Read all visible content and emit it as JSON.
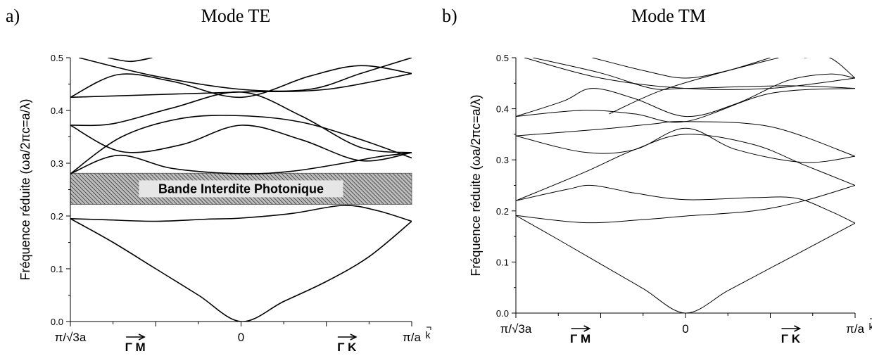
{
  "panels": [
    {
      "letter": "a)",
      "title": "Mode TE"
    },
    {
      "letter": "b)",
      "title": "Mode TM"
    }
  ],
  "chart_data": [
    {
      "type": "line",
      "title": "Mode TE",
      "ylabel": "Fréquence réduite (ωa/2πc=a/λ)",
      "xlabel": "k",
      "ylim": [
        0.0,
        0.5
      ],
      "yticks": [
        "0.0",
        "0.1",
        "0.2",
        "0.3",
        "0.4",
        "0.5"
      ],
      "xlim": [
        -1,
        1
      ],
      "xtick_labels": [
        {
          "x": -1,
          "text": "π/√3a"
        },
        {
          "x": 0,
          "text": "0"
        },
        {
          "x": 1,
          "text": "π/a"
        }
      ],
      "direction_labels": [
        {
          "x": -0.62,
          "text": "Γ M"
        },
        {
          "x": 0.62,
          "text": "Γ K"
        }
      ],
      "band_gap": {
        "label": "Bande Interdite Photonique",
        "ymin": 0.222,
        "ymax": 0.281
      },
      "series": [
        {
          "x": [
            -1,
            -0.8,
            -0.5,
            -0.2,
            0,
            0.3,
            0.6,
            0.8,
            1
          ],
          "y": [
            0.195,
            0.193,
            0.19,
            0.194,
            0.196,
            0.205,
            0.22,
            0.21,
            0.19
          ]
        },
        {
          "x": [
            -1,
            -0.75,
            -0.5,
            -0.25,
            0,
            0.25,
            0.5,
            0.75,
            1
          ],
          "y": [
            0.195,
            0.15,
            0.1,
            0.05,
            0.0,
            0.038,
            0.076,
            0.123,
            0.19
          ]
        },
        {
          "x": [
            -1,
            -0.72,
            -0.4,
            0,
            0.3,
            0.6,
            0.8,
            1
          ],
          "y": [
            0.28,
            0.315,
            0.29,
            0.28,
            0.285,
            0.3,
            0.312,
            0.32
          ]
        },
        {
          "x": [
            -1,
            -0.7,
            -0.35,
            0,
            0.35,
            0.7,
            1
          ],
          "y": [
            0.28,
            0.35,
            0.385,
            0.39,
            0.378,
            0.345,
            0.31
          ]
        },
        {
          "x": [
            -1,
            -0.7,
            -0.35,
            0,
            0.35,
            0.7,
            1
          ],
          "y": [
            0.372,
            0.322,
            0.335,
            0.372,
            0.345,
            0.305,
            0.32
          ]
        },
        {
          "x": [
            -1,
            -0.75,
            -0.4,
            0,
            0.35,
            0.7,
            1
          ],
          "y": [
            0.372,
            0.375,
            0.405,
            0.435,
            0.39,
            0.33,
            0.32
          ]
        },
        {
          "x": [
            -1,
            -0.5,
            0,
            0.5,
            1
          ],
          "y": [
            0.425,
            0.43,
            0.435,
            0.44,
            0.47
          ]
        },
        {
          "x": [
            -1,
            -0.72,
            -0.4,
            0,
            0.4,
            0.7,
            1
          ],
          "y": [
            0.425,
            0.468,
            0.455,
            0.425,
            0.465,
            0.485,
            0.47
          ]
        },
        {
          "x": [
            -0.95,
            -0.5,
            0,
            0.4,
            0.7,
            1
          ],
          "y": [
            0.5,
            0.465,
            0.44,
            0.44,
            0.47,
            0.5
          ]
        },
        {
          "x": [
            -0.78,
            -0.65,
            -0.52
          ],
          "y": [
            0.5,
            0.493,
            0.5
          ]
        }
      ]
    },
    {
      "type": "line",
      "title": "Mode TM",
      "ylabel": "Fréquence réduite (ωa/2πc=a/λ)",
      "xlabel": "k",
      "ylim": [
        0.0,
        0.5
      ],
      "yticks": [
        "0.0",
        "0.1",
        "0.2",
        "0.3",
        "0.4",
        "0.5"
      ],
      "xlim": [
        -1,
        1
      ],
      "xtick_labels": [
        {
          "x": -1,
          "text": "π/√3a"
        },
        {
          "x": 0,
          "text": "0"
        },
        {
          "x": 1,
          "text": "π/a"
        }
      ],
      "direction_labels": [
        {
          "x": -0.62,
          "text": "Γ M"
        },
        {
          "x": 0.62,
          "text": "Γ K"
        }
      ],
      "series": [
        {
          "x": [
            -1,
            -0.75,
            -0.5,
            -0.25,
            0,
            0.25,
            0.5,
            0.75,
            1
          ],
          "y": [
            0.191,
            0.144,
            0.096,
            0.048,
            0.0,
            0.044,
            0.088,
            0.132,
            0.176
          ]
        },
        {
          "x": [
            -1,
            -0.6,
            -0.25,
            0,
            0.4,
            0.7,
            1
          ],
          "y": [
            0.191,
            0.177,
            0.183,
            0.19,
            0.2,
            0.22,
            0.25
          ]
        },
        {
          "x": [
            -1,
            -0.7,
            -0.55,
            -0.3,
            0,
            0.4,
            0.65,
            0.85,
            1
          ],
          "y": [
            0.22,
            0.242,
            0.25,
            0.235,
            0.222,
            0.226,
            0.225,
            0.2,
            0.176
          ]
        },
        {
          "x": [
            -1,
            -0.6,
            -0.3,
            0,
            0.4,
            0.7,
            1
          ],
          "y": [
            0.22,
            0.275,
            0.32,
            0.35,
            0.33,
            0.29,
            0.25
          ]
        },
        {
          "x": [
            -1,
            -0.6,
            -0.3,
            0,
            0.3,
            0.7,
            1
          ],
          "y": [
            0.347,
            0.315,
            0.32,
            0.362,
            0.32,
            0.295,
            0.307
          ]
        },
        {
          "x": [
            -1,
            -0.5,
            -0.2,
            0,
            0.5,
            1
          ],
          "y": [
            0.347,
            0.36,
            0.37,
            0.375,
            0.365,
            0.307
          ]
        },
        {
          "x": [
            -1,
            -0.6,
            -0.3,
            0,
            0.5,
            1
          ],
          "y": [
            0.385,
            0.397,
            0.39,
            0.375,
            0.43,
            0.44
          ]
        },
        {
          "x": [
            -1,
            -0.72,
            -0.55,
            -0.3,
            0,
            0.3,
            0.6,
            0.85,
            1
          ],
          "y": [
            0.385,
            0.415,
            0.44,
            0.42,
            0.385,
            0.41,
            0.455,
            0.468,
            0.46
          ]
        },
        {
          "x": [
            -0.95,
            -0.5,
            0,
            0.5,
            1
          ],
          "y": [
            0.5,
            0.46,
            0.44,
            0.44,
            0.46
          ]
        },
        {
          "x": [
            -0.9,
            -0.5,
            -0.2,
            0,
            0.6,
            1
          ],
          "y": [
            0.5,
            0.47,
            0.44,
            0.44,
            0.445,
            0.44
          ]
        },
        {
          "x": [
            -0.45,
            -0.15,
            0.2,
            0.55
          ],
          "y": [
            0.39,
            0.435,
            0.47,
            0.5
          ]
        },
        {
          "x": [
            -0.55,
            -0.25,
            0,
            0.25,
            0.5
          ],
          "y": [
            0.5,
            0.475,
            0.46,
            0.475,
            0.5
          ]
        },
        {
          "x": [
            0.7,
            0.85,
            1
          ],
          "y": [
            0.5,
            0.5,
            0.46
          ]
        }
      ]
    }
  ]
}
